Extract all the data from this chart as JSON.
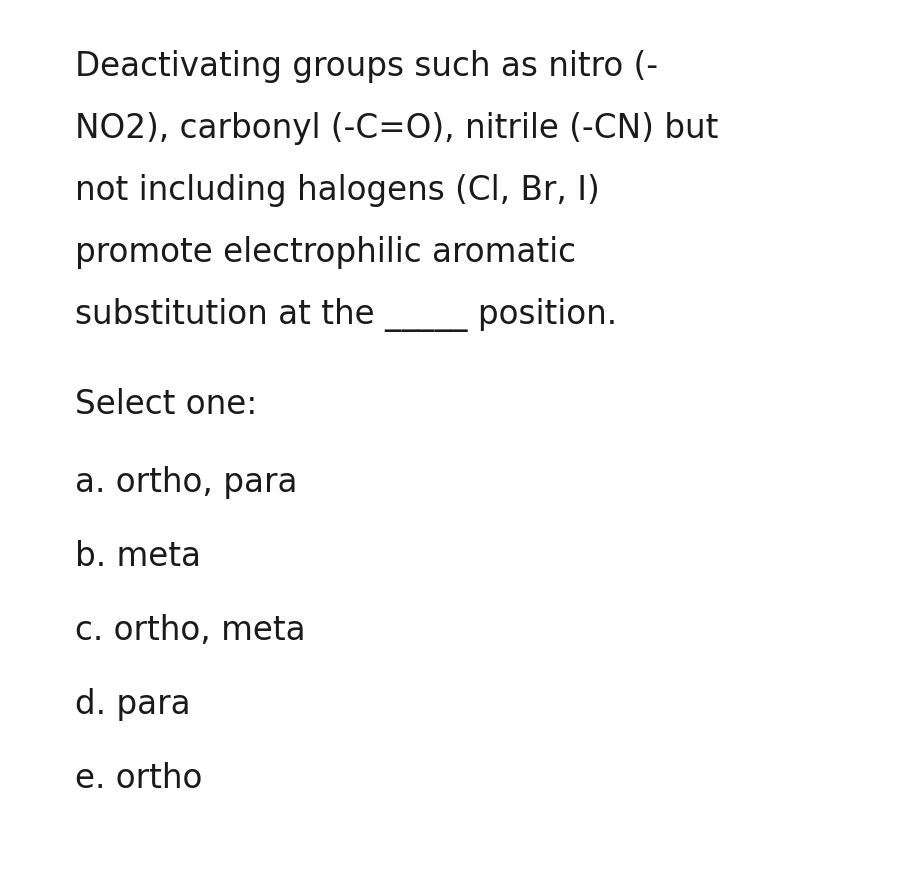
{
  "background_color": "#ffffff",
  "question_lines": [
    "Deactivating groups such as nitro (-",
    "NO2), carbonyl (-C=O), nitrile (-CN) but",
    "not including halogens (Cl, Br, I)",
    "promote electrophilic aromatic",
    "substitution at the _____ position."
  ],
  "select_label": "Select one:",
  "options": [
    "a. ortho, para",
    "b. meta",
    "c. ortho, meta",
    "d. para",
    "e. ortho"
  ],
  "text_color": "#1a1a1a",
  "font_size": 23.5
}
